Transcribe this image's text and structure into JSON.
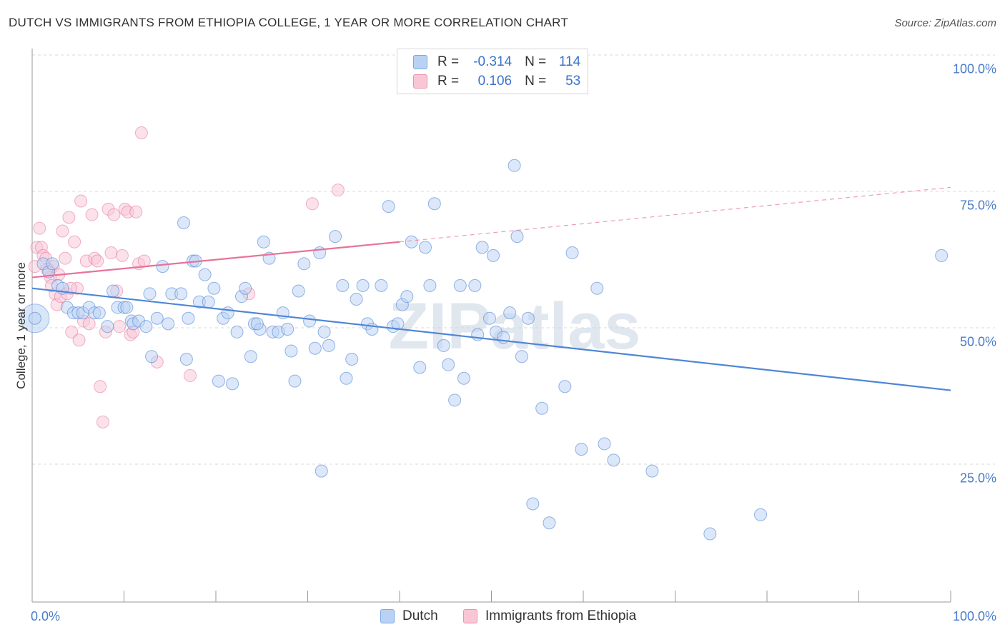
{
  "title": "DUTCH VS IMMIGRANTS FROM ETHIOPIA COLLEGE, 1 YEAR OR MORE CORRELATION CHART",
  "source": "Source: ZipAtlas.com",
  "watermark": "ZIPatlas",
  "legend": {
    "r_label": "R =",
    "n_label": "N =",
    "rows": [
      {
        "name": "Dutch",
        "r": "-0.314",
        "n": "114",
        "color": "#7aa9e8",
        "fill": "#b9d2f3"
      },
      {
        "name": "Immigrants from Ethiopia",
        "r": "0.106",
        "n": "53",
        "color": "#ef90ae",
        "fill": "#f8c6d5"
      }
    ]
  },
  "chart_data": {
    "type": "scatter",
    "title": "DUTCH VS IMMIGRANTS FROM ETHIOPIA COLLEGE, 1 YEAR OR MORE CORRELATION CHART",
    "xlabel": "",
    "ylabel": "College, 1 year or more",
    "xlim": [
      0,
      100
    ],
    "ylim": [
      0,
      100
    ],
    "x_tick_labels": [
      "0.0%",
      "100.0%"
    ],
    "y_tick_labels": [
      {
        "value": 100,
        "label": "100.0%"
      },
      {
        "value": 75,
        "label": "75.0%"
      },
      {
        "value": 50,
        "label": "50.0%"
      },
      {
        "value": 25,
        "label": "25.0%"
      }
    ],
    "grid": "horizontal dashed",
    "legend_position": "top-center",
    "series": [
      {
        "name": "Dutch",
        "color": "#4f86d6",
        "trend": {
          "x": [
            0,
            100
          ],
          "y": [
            57.5,
            38.8
          ]
        },
        "points": [
          [
            0.3,
            52
          ],
          [
            1.2,
            62
          ],
          [
            1.8,
            60.5
          ],
          [
            2.2,
            62
          ],
          [
            2.8,
            58
          ],
          [
            3.3,
            57.5
          ],
          [
            3.8,
            54
          ],
          [
            4.5,
            53
          ],
          [
            5.0,
            53
          ],
          [
            5.5,
            53
          ],
          [
            6.2,
            54
          ],
          [
            6.8,
            53
          ],
          [
            7.3,
            53
          ],
          [
            8.2,
            50.5
          ],
          [
            8.8,
            57
          ],
          [
            9.3,
            54
          ],
          [
            10.0,
            54
          ],
          [
            10.3,
            54
          ],
          [
            10.8,
            51.5
          ],
          [
            11.0,
            51
          ],
          [
            11.6,
            51.5
          ],
          [
            12.4,
            50.5
          ],
          [
            12.8,
            56.5
          ],
          [
            13.0,
            45
          ],
          [
            13.6,
            52
          ],
          [
            14.2,
            61.5
          ],
          [
            14.8,
            51
          ],
          [
            15.2,
            56.5
          ],
          [
            16.2,
            56.5
          ],
          [
            16.5,
            69.5
          ],
          [
            16.8,
            44.5
          ],
          [
            17.0,
            52
          ],
          [
            17.5,
            62.5
          ],
          [
            17.8,
            62.5
          ],
          [
            18.2,
            55
          ],
          [
            18.8,
            60
          ],
          [
            19.2,
            55
          ],
          [
            19.8,
            57.5
          ],
          [
            20.3,
            40.5
          ],
          [
            20.8,
            52
          ],
          [
            21.3,
            53
          ],
          [
            21.8,
            40
          ],
          [
            22.3,
            49.5
          ],
          [
            22.8,
            56
          ],
          [
            23.2,
            57.5
          ],
          [
            23.8,
            45
          ],
          [
            24.2,
            51
          ],
          [
            24.8,
            50
          ],
          [
            25.2,
            66
          ],
          [
            25.8,
            63
          ],
          [
            26.2,
            49.5
          ],
          [
            26.8,
            49.5
          ],
          [
            27.3,
            53
          ],
          [
            27.8,
            50
          ],
          [
            28.2,
            46
          ],
          [
            28.6,
            40.5
          ],
          [
            29.0,
            57
          ],
          [
            29.6,
            62
          ],
          [
            30.2,
            51.5
          ],
          [
            30.8,
            46.5
          ],
          [
            31.3,
            64
          ],
          [
            31.8,
            49.5
          ],
          [
            32.3,
            47
          ],
          [
            33.0,
            67
          ],
          [
            33.8,
            58
          ],
          [
            34.2,
            41
          ],
          [
            34.8,
            44.5
          ],
          [
            35.3,
            55.5
          ],
          [
            36.0,
            58
          ],
          [
            36.5,
            51
          ],
          [
            37.0,
            50
          ],
          [
            38.0,
            58
          ],
          [
            38.8,
            72.5
          ],
          [
            39.3,
            50.5
          ],
          [
            39.8,
            51
          ],
          [
            40.3,
            54.5
          ],
          [
            40.8,
            56
          ],
          [
            41.3,
            66
          ],
          [
            42.2,
            43
          ],
          [
            42.8,
            65
          ],
          [
            43.3,
            58
          ],
          [
            43.8,
            73
          ],
          [
            44.8,
            47
          ],
          [
            45.3,
            43.5
          ],
          [
            46.0,
            37
          ],
          [
            46.6,
            58
          ],
          [
            47.0,
            41
          ],
          [
            48.2,
            58
          ],
          [
            48.5,
            49
          ],
          [
            49.0,
            65
          ],
          [
            49.8,
            52
          ],
          [
            50.2,
            63.5
          ],
          [
            50.5,
            49.5
          ],
          [
            51.3,
            48.5
          ],
          [
            52.0,
            53
          ],
          [
            52.5,
            80
          ],
          [
            52.8,
            67
          ],
          [
            53.3,
            45
          ],
          [
            54.0,
            52
          ],
          [
            54.5,
            18
          ],
          [
            55.5,
            35.5
          ],
          [
            56.3,
            14.5
          ],
          [
            58.0,
            39.5
          ],
          [
            58.8,
            64
          ],
          [
            59.8,
            28
          ],
          [
            61.5,
            57.5
          ],
          [
            62.3,
            29
          ],
          [
            63.3,
            26
          ],
          [
            67.5,
            24
          ],
          [
            73.8,
            12.5
          ],
          [
            79.3,
            16
          ],
          [
            99.0,
            63.5
          ],
          [
            31.5,
            24
          ],
          [
            24.5,
            51
          ]
        ]
      },
      {
        "name": "Immigrants from Ethiopia",
        "color": "#e8729a",
        "trend": {
          "x": [
            0,
            40
          ],
          "y": [
            59.5,
            66
          ]
        },
        "trend_dashed": {
          "x": [
            40,
            100
          ],
          "y": [
            66,
            76
          ]
        },
        "points": [
          [
            0.3,
            61.5
          ],
          [
            0.5,
            65
          ],
          [
            0.8,
            68.5
          ],
          [
            1.0,
            65
          ],
          [
            1.2,
            63.5
          ],
          [
            1.5,
            63
          ],
          [
            1.8,
            61
          ],
          [
            2.0,
            59.5
          ],
          [
            2.3,
            61.5
          ],
          [
            2.5,
            56.5
          ],
          [
            2.7,
            54.5
          ],
          [
            2.9,
            60
          ],
          [
            3.1,
            56
          ],
          [
            3.3,
            68
          ],
          [
            3.6,
            63
          ],
          [
            3.8,
            56.5
          ],
          [
            4.0,
            70.5
          ],
          [
            4.3,
            49.5
          ],
          [
            4.6,
            66
          ],
          [
            4.9,
            57.5
          ],
          [
            5.1,
            48
          ],
          [
            5.3,
            73.5
          ],
          [
            5.6,
            51.5
          ],
          [
            5.9,
            62.5
          ],
          [
            6.2,
            51
          ],
          [
            6.5,
            71
          ],
          [
            6.8,
            63
          ],
          [
            7.1,
            62.5
          ],
          [
            7.4,
            39.5
          ],
          [
            7.7,
            33
          ],
          [
            8.0,
            49.5
          ],
          [
            8.3,
            72
          ],
          [
            8.6,
            64
          ],
          [
            8.9,
            71
          ],
          [
            9.2,
            57
          ],
          [
            9.5,
            50.5
          ],
          [
            9.8,
            63.5
          ],
          [
            10.1,
            72
          ],
          [
            10.4,
            71.5
          ],
          [
            10.7,
            49
          ],
          [
            11.0,
            49.5
          ],
          [
            11.3,
            71.5
          ],
          [
            11.6,
            62
          ],
          [
            11.9,
            86
          ],
          [
            12.2,
            62.5
          ],
          [
            13.6,
            44
          ],
          [
            17.2,
            41.5
          ],
          [
            23.6,
            56.5
          ],
          [
            30.5,
            73
          ],
          [
            33.3,
            75.5
          ],
          [
            1.6,
            61
          ],
          [
            4.2,
            57.5
          ],
          [
            2.1,
            58
          ]
        ]
      }
    ]
  }
}
